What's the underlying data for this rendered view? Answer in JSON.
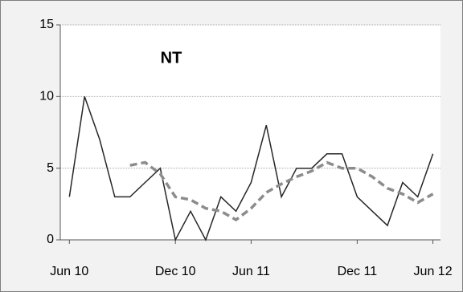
{
  "chart_data": {
    "type": "line",
    "title": "NT",
    "x": [
      0,
      1,
      2,
      3,
      4,
      5,
      6,
      7,
      8,
      9,
      10,
      11,
      12,
      13,
      14,
      15,
      16,
      17,
      18,
      19,
      20,
      21,
      22,
      23,
      24
    ],
    "series": [
      {
        "color": "#262626",
        "dash": false,
        "values": [
          3,
          10,
          7,
          3,
          3,
          4,
          5,
          0,
          2,
          0,
          3,
          2,
          4,
          8,
          3,
          5,
          5,
          6,
          6,
          3,
          2,
          1,
          4,
          3,
          6
        ]
      },
      {
        "color": "#8c8c8c",
        "dash": true,
        "values": [
          null,
          null,
          null,
          null,
          5.2,
          5.4,
          4.6,
          3,
          2.8,
          2.2,
          2,
          1.4,
          2.2,
          3.3,
          3.9,
          4.4,
          4.8,
          5.4,
          5,
          5,
          4.4,
          3.6,
          3.2,
          2.6,
          3.2
        ]
      }
    ],
    "xlim": [
      -0.6,
      24.5
    ],
    "xticks": [
      {
        "value": 0,
        "label": "Jun 10"
      },
      {
        "value": 7,
        "label": "Dec 10"
      },
      {
        "value": 12,
        "label": "Jun 11"
      },
      {
        "value": 19,
        "label": "Dec 11"
      },
      {
        "value": 24,
        "label": "Jun 12"
      }
    ],
    "ylim": [
      0,
      15
    ],
    "yticks": [
      0,
      5,
      10,
      15
    ],
    "grid": true
  }
}
